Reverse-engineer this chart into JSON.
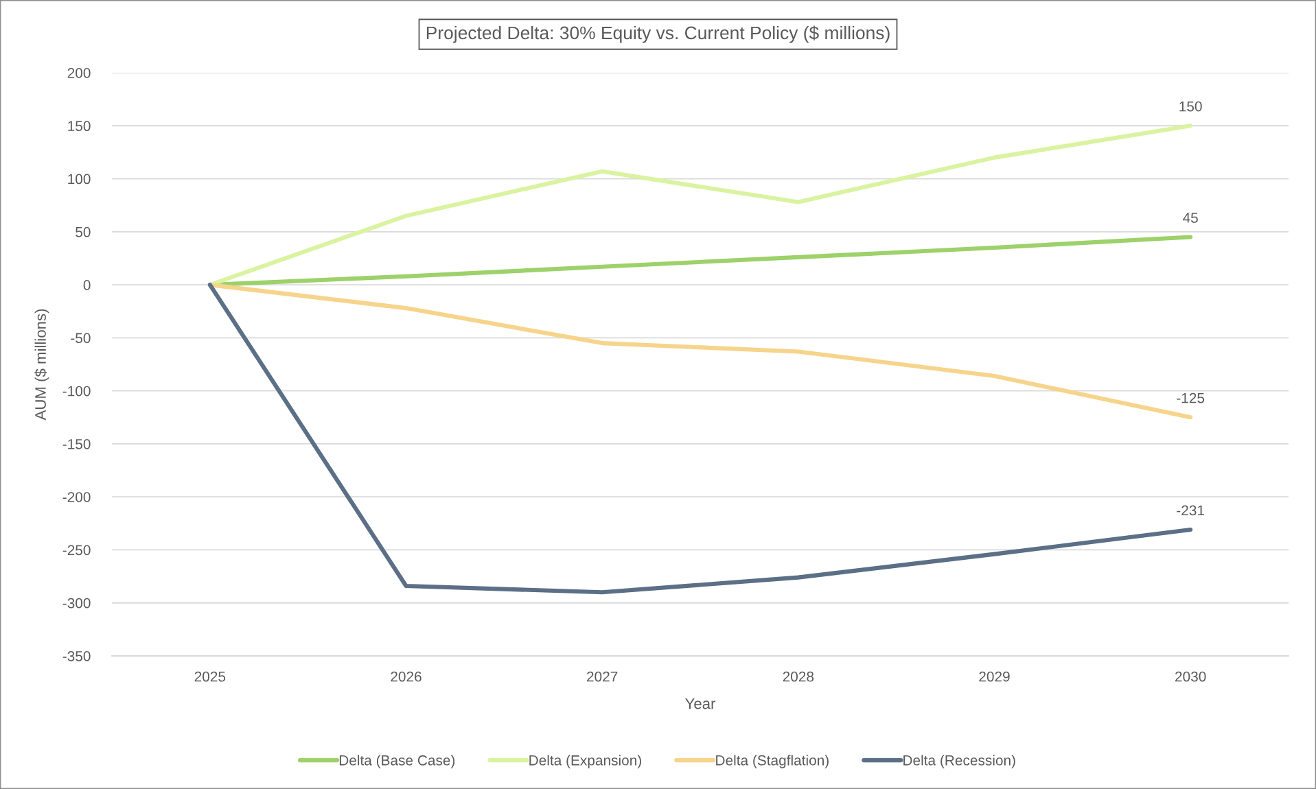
{
  "chart_data": {
    "type": "line",
    "title": "Projected Delta: 30% Equity vs. Current Policy ($ millions)",
    "xlabel": "Year",
    "ylabel": "AUM ($ millions)",
    "categories": [
      "2025",
      "2026",
      "2027",
      "2028",
      "2029",
      "2030"
    ],
    "series": [
      {
        "name": "Delta (Base Case)",
        "color": "#9dd16a",
        "values": [
          0,
          8,
          17,
          26,
          35,
          45
        ],
        "value_labels": [
          null,
          null,
          null,
          null,
          null,
          "45"
        ]
      },
      {
        "name": "Delta (Expansion)",
        "color": "#daf3a0",
        "values": [
          0,
          65,
          107,
          78,
          120,
          150
        ],
        "value_labels": [
          null,
          null,
          null,
          null,
          null,
          "150"
        ]
      },
      {
        "name": "Delta (Stagflation)",
        "color": "#f6d48b",
        "values": [
          0,
          -22,
          -55,
          -63,
          -86,
          -125
        ],
        "value_labels": [
          null,
          null,
          null,
          null,
          null,
          "-125"
        ]
      },
      {
        "name": "Delta (Recession)",
        "color": "#5b6f86",
        "values": [
          0,
          -284,
          -290,
          -276,
          -254,
          -231
        ],
        "value_labels": [
          null,
          null,
          null,
          null,
          null,
          "-231"
        ]
      }
    ],
    "ylim": [
      -350,
      200
    ],
    "yticks": [
      -350,
      -300,
      -250,
      -200,
      -150,
      -100,
      -50,
      0,
      50,
      100,
      150,
      200
    ],
    "grid": "y",
    "legend": "bottom",
    "marker": "none",
    "line_style": "solid"
  }
}
